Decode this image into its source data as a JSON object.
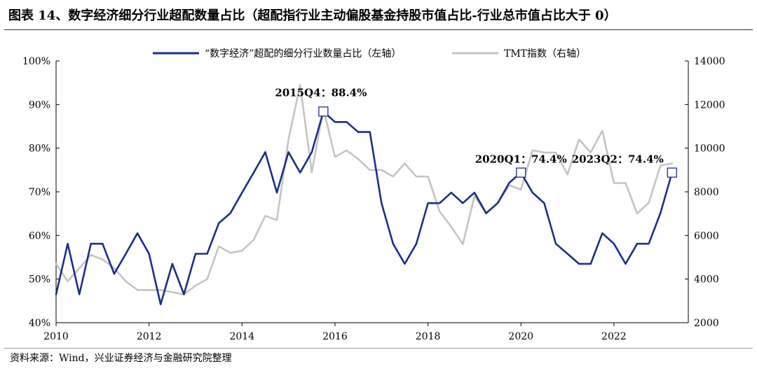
{
  "title": "图表 14、数字经济细分行业超配数量占比（超配指行业主动偏股基金持股市值占比-行业总市值占比大于 0）",
  "source": "资料来源：Wind，兴业证券经济与金融研究院整理",
  "colors": {
    "series_primary": "#1a2f8a",
    "series_secondary": "#c4c4c4",
    "marker_stroke": "#1a2f8a"
  },
  "chart_data": {
    "type": "line",
    "title": "",
    "xlabel": "",
    "ylabel": "",
    "x_ticks": [
      "2010",
      "2012",
      "2014",
      "2016",
      "2018",
      "2020",
      "2022"
    ],
    "x_tick_values": [
      2010,
      2012,
      2014,
      2016,
      2018,
      2020,
      2022
    ],
    "xlim": [
      2010,
      2023.6
    ],
    "y_left": {
      "ticks": [
        "40%",
        "50%",
        "60%",
        "70%",
        "80%",
        "90%",
        "100%"
      ],
      "range": [
        40,
        100
      ],
      "unit": "%"
    },
    "y_right": {
      "ticks": [
        "2000",
        "4000",
        "6000",
        "8000",
        "10000",
        "12000",
        "14000"
      ],
      "range": [
        2000,
        14000
      ]
    },
    "legend_position": "top",
    "grid": false,
    "series": [
      {
        "name": "“数字经济”超配的细分行业数量占比（左轴）",
        "axis": "left",
        "x": [
          2010.0,
          2010.25,
          2010.5,
          2010.75,
          2011.0,
          2011.25,
          2011.5,
          2011.75,
          2012.0,
          2012.25,
          2012.5,
          2012.75,
          2013.0,
          2013.25,
          2013.5,
          2013.75,
          2014.0,
          2014.25,
          2014.5,
          2014.75,
          2015.0,
          2015.25,
          2015.5,
          2015.75,
          2016.0,
          2016.25,
          2016.5,
          2016.75,
          2017.0,
          2017.25,
          2017.5,
          2017.75,
          2018.0,
          2018.25,
          2018.5,
          2018.75,
          2019.0,
          2019.25,
          2019.5,
          2019.75,
          2020.0,
          2020.25,
          2020.5,
          2020.75,
          2021.0,
          2021.25,
          2021.5,
          2021.75,
          2022.0,
          2022.25,
          2022.5,
          2022.75,
          2023.0,
          2023.25
        ],
        "values": [
          46.5,
          58.1,
          46.5,
          58.1,
          58.1,
          51.2,
          55.8,
          60.5,
          55.8,
          44.2,
          53.5,
          46.5,
          55.8,
          55.8,
          62.8,
          65.1,
          69.8,
          74.4,
          79.1,
          69.8,
          79.1,
          74.4,
          79.1,
          88.4,
          86.0,
          86.0,
          83.7,
          83.7,
          67.4,
          58.1,
          53.5,
          58.1,
          67.4,
          67.4,
          69.8,
          67.4,
          69.8,
          65.1,
          67.4,
          72.1,
          74.4,
          69.8,
          67.4,
          58.1,
          55.8,
          53.5,
          53.5,
          60.5,
          58.1,
          53.5,
          58.1,
          58.1,
          65.1,
          74.4
        ]
      },
      {
        "name": "TMT指数（右轴）",
        "axis": "right",
        "x": [
          2010.0,
          2010.25,
          2010.5,
          2010.75,
          2011.0,
          2011.25,
          2011.5,
          2011.75,
          2012.0,
          2012.25,
          2012.5,
          2012.75,
          2013.0,
          2013.25,
          2013.5,
          2013.75,
          2014.0,
          2014.25,
          2014.5,
          2014.75,
          2015.0,
          2015.25,
          2015.5,
          2015.75,
          2016.0,
          2016.25,
          2016.5,
          2016.75,
          2017.0,
          2017.25,
          2017.5,
          2017.75,
          2018.0,
          2018.25,
          2018.5,
          2018.75,
          2019.0,
          2019.25,
          2019.5,
          2019.75,
          2020.0,
          2020.25,
          2020.5,
          2020.75,
          2021.0,
          2021.25,
          2021.5,
          2021.75,
          2022.0,
          2022.25,
          2022.5,
          2022.75,
          2023.0,
          2023.25
        ],
        "values": [
          4700,
          3900,
          4500,
          5100,
          4900,
          4500,
          3900,
          3500,
          3500,
          3500,
          3400,
          3300,
          3700,
          4000,
          5500,
          5200,
          5300,
          5800,
          6900,
          6700,
          10400,
          12900,
          8900,
          11800,
          9600,
          9900,
          9500,
          9000,
          9000,
          8700,
          9300,
          8700,
          8700,
          7100,
          6400,
          5600,
          7800,
          7000,
          7500,
          8300,
          8100,
          9900,
          9800,
          9800,
          8800,
          10400,
          9800,
          10800,
          8400,
          8400,
          7000,
          7500,
          9200,
          9300
        ]
      }
    ],
    "annotations": [
      {
        "text": "2015Q4：88.4%",
        "x": 2015.75,
        "y": 88.4,
        "axis": "left"
      },
      {
        "text": "2020Q1：74.4%",
        "x": 2020.0,
        "y": 74.4,
        "axis": "left"
      },
      {
        "text": "2023Q2：74.4%",
        "x": 2023.25,
        "y": 74.4,
        "axis": "left"
      }
    ]
  }
}
